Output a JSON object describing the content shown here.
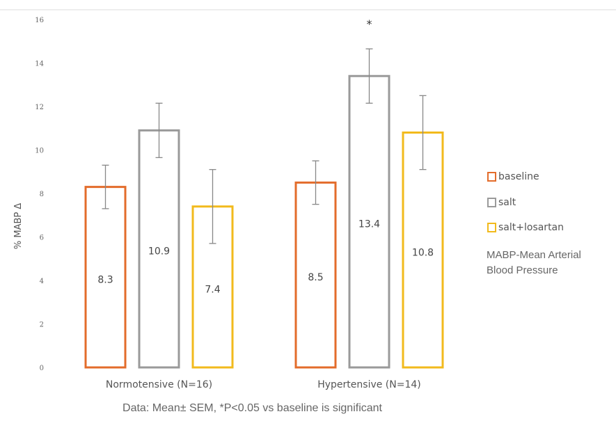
{
  "chart_data": {
    "type": "bar",
    "ylabel": "% MABP Δ",
    "ylim": [
      0,
      16
    ],
    "yticks": [
      "0",
      "2",
      "4",
      "6",
      "8",
      "10",
      "12",
      "14",
      "16"
    ],
    "categories": [
      "Normotensive (N=16)",
      "Hypertensive (N=14)"
    ],
    "series": [
      {
        "name": "baseline",
        "color": "#E36C2B",
        "values": [
          8.3,
          8.5
        ],
        "errors": [
          1.0,
          1.0
        ],
        "labels": [
          "8.3",
          "8.5"
        ]
      },
      {
        "name": "salt",
        "color": "#9A9A9A",
        "values": [
          10.9,
          13.4
        ],
        "errors": [
          1.25,
          1.25
        ],
        "labels": [
          "10.9",
          "13.4"
        ]
      },
      {
        "name": "salt+losartan",
        "color": "#F2BA1C",
        "values": [
          7.4,
          10.8
        ],
        "errors": [
          1.7,
          1.7
        ],
        "labels": [
          "7.4",
          "10.8"
        ]
      }
    ],
    "significance_marker": "*",
    "grid": false,
    "legend_position": "right"
  },
  "note": {
    "line1": "MABP-Mean Arterial",
    "line2": "Blood Pressure"
  },
  "footer": "Data: Mean± SEM, *P<0.05 vs baseline is significant"
}
